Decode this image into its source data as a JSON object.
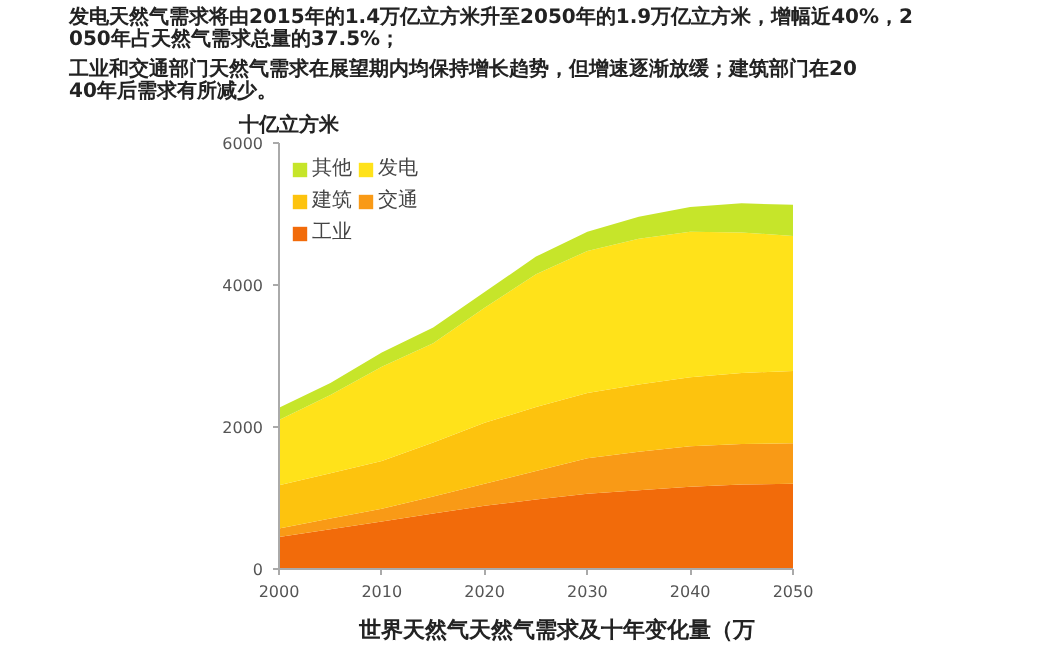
{
  "chart_data": {
    "type": "area",
    "stacked": true,
    "title": "世界天然气天然气需求及十年变化量（万",
    "ylabel": "十亿立方米",
    "annotations": [
      "发电天然气需求将由2015年的1.4万亿立方米升至2050年的1.9万亿立方米，增幅近40%，2050年占天然气需求总量的37.5%；",
      "工业和交通部门天然气需求在展望期内均保持增长趋势，但增速逐渐放缓；建筑部门在2040年后需求有所减少。"
    ],
    "x": [
      2000,
      2005,
      2010,
      2015,
      2020,
      2025,
      2030,
      2035,
      2040,
      2045,
      2050
    ],
    "series": [
      {
        "name": "工业",
        "color": "#f26b0a",
        "values": [
          450,
          560,
          670,
          780,
          890,
          980,
          1060,
          1110,
          1160,
          1190,
          1200
        ]
      },
      {
        "name": "交通",
        "color": "#f99a16",
        "values": [
          120,
          150,
          180,
          240,
          310,
          400,
          500,
          540,
          570,
          570,
          570
        ]
      },
      {
        "name": "建筑",
        "color": "#fdc30e",
        "values": [
          610,
          640,
          670,
          760,
          860,
          900,
          920,
          950,
          970,
          1000,
          1020
        ]
      },
      {
        "name": "发电",
        "color": "#ffe21a",
        "values": [
          920,
          1100,
          1330,
          1400,
          1620,
          1870,
          2000,
          2050,
          2050,
          1980,
          1900
        ]
      },
      {
        "name": "其他",
        "color": "#c6e52a",
        "values": [
          170,
          170,
          200,
          220,
          220,
          250,
          270,
          310,
          350,
          410,
          440
        ]
      }
    ],
    "xlim": [
      2000,
      2050
    ],
    "xticks": [
      2000,
      2010,
      2020,
      2030,
      2040,
      2050
    ],
    "ylim": [
      0,
      6000
    ],
    "yticks": [
      0,
      2000,
      4000,
      6000
    ],
    "grid": false,
    "legend": "top left"
  }
}
